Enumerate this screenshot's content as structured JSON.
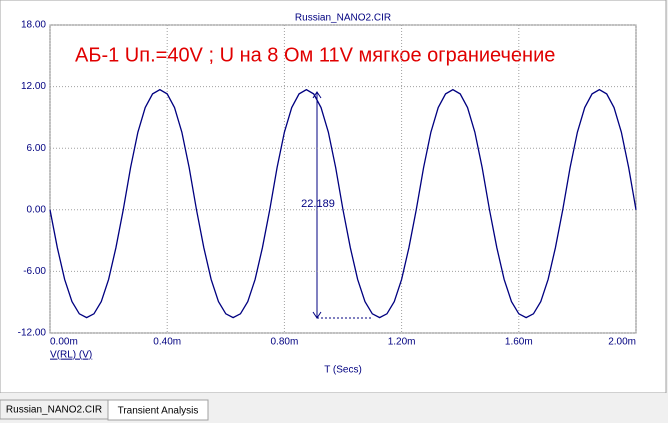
{
  "chart_data": {
    "type": "line",
    "title": "Russian_NANO2.CIR",
    "annotations": [
      "АБ-1 Uп.=40V ; U на 8 Ом 11V мягкое ограниечение",
      "22.189"
    ],
    "x_label": "T (Secs)",
    "x": [
      0,
      2.5e-05,
      5e-05,
      7.5e-05,
      0.0001,
      0.000125,
      0.00015,
      0.000175,
      0.0002,
      0.000225,
      0.00025,
      0.000275,
      0.0003,
      0.000325,
      0.00035,
      0.000375,
      0.0004,
      0.000425,
      0.00045,
      0.000475,
      0.0005,
      0.000525,
      0.00055,
      0.000575,
      0.0006,
      0.000625,
      0.00065,
      0.000675,
      0.0007,
      0.000725,
      0.00075,
      0.000775,
      0.0008,
      0.000825,
      0.00085,
      0.000875,
      0.0009,
      0.000925,
      0.00095,
      0.000975,
      0.001,
      0.001025,
      0.00105,
      0.001075,
      0.0011,
      0.001125,
      0.00115,
      0.001175,
      0.0012,
      0.001225,
      0.00125,
      0.001275,
      0.0013,
      0.001325,
      0.00135,
      0.001375,
      0.0014,
      0.001425,
      0.00145,
      0.001475,
      0.0015,
      0.001525,
      0.00155,
      0.001575,
      0.0016,
      0.001625,
      0.00165,
      0.001675,
      0.0017,
      0.001725,
      0.00175,
      0.001775,
      0.0018,
      0.001825,
      0.00185,
      0.001875,
      0.0019,
      0.001925,
      0.00195,
      0.001975,
      0.002
    ],
    "series": [
      {
        "name": "V(RL) (V)",
        "color": "#000080",
        "values": [
          0,
          -3.69,
          -6.78,
          -8.94,
          -10.13,
          -10.5,
          -10.13,
          -8.94,
          -6.78,
          -3.69,
          0,
          4.11,
          7.56,
          9.96,
          11.29,
          11.7,
          11.29,
          9.96,
          7.56,
          4.11,
          0,
          -3.69,
          -6.78,
          -8.94,
          -10.13,
          -10.5,
          -10.13,
          -8.94,
          -6.78,
          -3.69,
          0,
          4.11,
          7.56,
          9.96,
          11.29,
          11.7,
          11.29,
          9.96,
          7.56,
          4.11,
          0,
          -3.69,
          -6.78,
          -8.94,
          -10.13,
          -10.5,
          -10.13,
          -8.94,
          -6.78,
          -3.69,
          0,
          4.11,
          7.56,
          9.96,
          11.29,
          11.7,
          11.29,
          9.96,
          7.56,
          4.11,
          0,
          -3.69,
          -6.78,
          -8.94,
          -10.13,
          -10.5,
          -10.13,
          -8.94,
          -6.78,
          -3.69,
          0,
          4.11,
          7.56,
          9.96,
          11.29,
          11.7,
          11.29,
          9.96,
          7.56,
          4.11,
          0
        ]
      }
    ],
    "xlim": [
      0,
      0.002
    ],
    "xticks": [
      {
        "value": 0,
        "label": "0.00m"
      },
      {
        "value": 0.0004,
        "label": "0.40m"
      },
      {
        "value": 0.0008,
        "label": "0.80m"
      },
      {
        "value": 0.0012,
        "label": "1.20m"
      },
      {
        "value": 0.0016,
        "label": "1.60m"
      },
      {
        "value": 0.002,
        "label": "2.00m"
      }
    ],
    "ylim": [
      -12,
      18
    ],
    "yticks": [
      {
        "value": 18,
        "label": "18.00"
      },
      {
        "value": 12,
        "label": "12.00"
      },
      {
        "value": 6,
        "label": "6.00"
      },
      {
        "value": 0,
        "label": "0.00"
      },
      {
        "value": -6,
        "label": "-6.00"
      },
      {
        "value": -12,
        "label": "-12.00"
      }
    ],
    "grid": true
  },
  "tabs": [
    "Russian_NANO2.CIR",
    "Transient Analysis"
  ]
}
